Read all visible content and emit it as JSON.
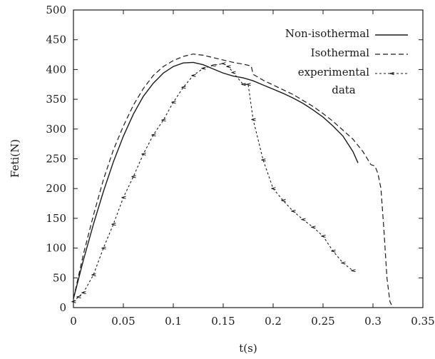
{
  "chart_data": {
    "type": "line",
    "title": "",
    "xlabel": "t(s)",
    "ylabel": "Feti(N)",
    "xlim": [
      0,
      0.35
    ],
    "ylim": [
      0,
      500
    ],
    "xticks": [
      "0",
      "0.05",
      "0.1",
      "0.15",
      "0.2",
      "0.25",
      "0.3",
      "0.35"
    ],
    "yticks": [
      "0",
      "50",
      "100",
      "150",
      "200",
      "250",
      "300",
      "350",
      "400",
      "450",
      "500"
    ],
    "grid": false,
    "legend_position": "top-right",
    "series": [
      {
        "name": "Non-isothermal",
        "style": "solid",
        "x": [
          0.0,
          0.01,
          0.02,
          0.03,
          0.04,
          0.05,
          0.06,
          0.07,
          0.08,
          0.09,
          0.1,
          0.11,
          0.12,
          0.13,
          0.14,
          0.15,
          0.16,
          0.17,
          0.18,
          0.19,
          0.2,
          0.21,
          0.22,
          0.23,
          0.24,
          0.25,
          0.26,
          0.27,
          0.28,
          0.285
        ],
        "y": [
          15,
          80,
          140,
          195,
          245,
          288,
          325,
          355,
          377,
          394,
          405,
          411,
          412,
          408,
          401,
          394,
          389,
          386,
          381,
          374,
          367,
          360,
          352,
          343,
          332,
          320,
          305,
          288,
          262,
          243
        ]
      },
      {
        "name": "Isothermal",
        "style": "dashed",
        "x": [
          0.0,
          0.01,
          0.02,
          0.03,
          0.04,
          0.05,
          0.06,
          0.07,
          0.08,
          0.09,
          0.1,
          0.11,
          0.12,
          0.13,
          0.14,
          0.15,
          0.16,
          0.17,
          0.178,
          0.18,
          0.19,
          0.2,
          0.21,
          0.22,
          0.23,
          0.24,
          0.25,
          0.26,
          0.27,
          0.28,
          0.29,
          0.298,
          0.302,
          0.305,
          0.308,
          0.311,
          0.314,
          0.317,
          0.32
        ],
        "y": [
          15,
          90,
          155,
          215,
          265,
          305,
          340,
          368,
          390,
          405,
          415,
          422,
          426,
          424,
          420,
          416,
          412,
          409,
          406,
          392,
          382,
          374,
          366,
          358,
          348,
          338,
          326,
          313,
          298,
          283,
          262,
          240,
          238,
          225,
          200,
          130,
          50,
          10,
          0
        ]
      },
      {
        "name": "experimental data",
        "style": "dotted-markers",
        "x": [
          0.0,
          0.005,
          0.01,
          0.02,
          0.03,
          0.04,
          0.05,
          0.06,
          0.07,
          0.08,
          0.09,
          0.1,
          0.11,
          0.12,
          0.13,
          0.14,
          0.15,
          0.155,
          0.16,
          0.17,
          0.175,
          0.18,
          0.19,
          0.2,
          0.21,
          0.22,
          0.23,
          0.24,
          0.25,
          0.26,
          0.27,
          0.28
        ],
        "y": [
          10,
          18,
          25,
          55,
          100,
          140,
          185,
          220,
          258,
          290,
          315,
          345,
          370,
          390,
          402,
          407,
          410,
          405,
          395,
          375,
          375,
          316,
          248,
          200,
          180,
          162,
          148,
          135,
          120,
          95,
          75,
          62
        ]
      }
    ]
  }
}
